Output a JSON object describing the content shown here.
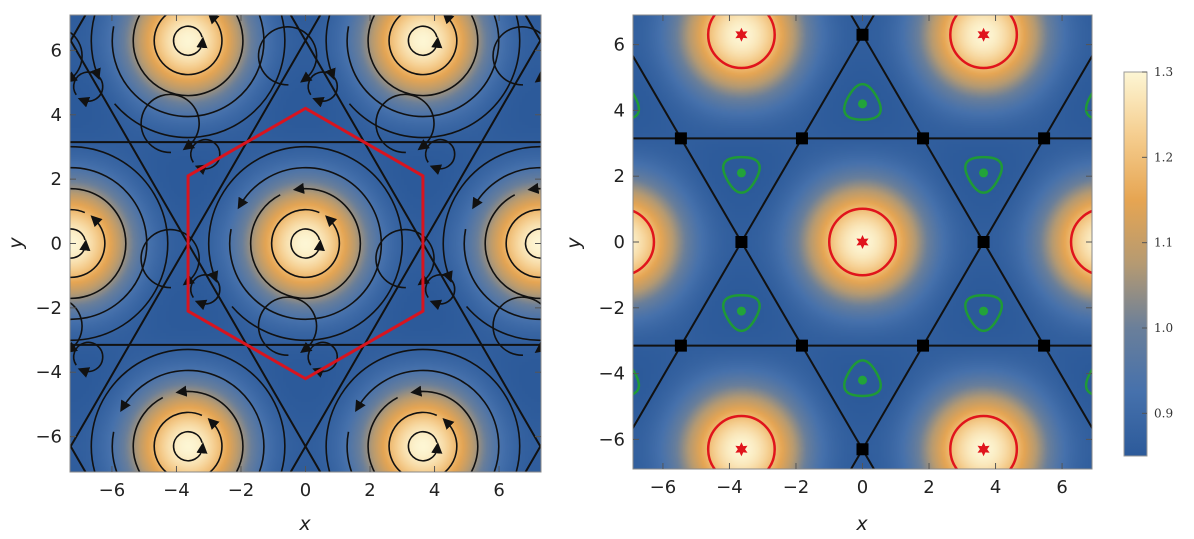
{
  "chart_data": [
    {
      "type": "heatmap",
      "panel": "left",
      "overlay": "streamlines",
      "xlabel": "x",
      "ylabel": "y",
      "xlim": [
        -7.3,
        7.3
      ],
      "ylim": [
        -7.1,
        7.1
      ],
      "x_ticks": [
        -6,
        -4,
        -2,
        0,
        2,
        4,
        6
      ],
      "y_ticks": [
        -6,
        -4,
        -2,
        0,
        2,
        4,
        6
      ],
      "x_tick_labels": [
        "−6",
        "−4",
        "−2",
        "0",
        "2",
        "4",
        "6"
      ],
      "y_tick_labels": [
        "−6",
        "−4",
        "−2",
        "0",
        "2",
        "4",
        "6"
      ],
      "maxima": [
        [
          0,
          0
        ],
        [
          -3.64,
          6.3
        ],
        [
          3.64,
          6.3
        ],
        [
          -7.27,
          0
        ],
        [
          7.27,
          0
        ],
        [
          -3.64,
          -6.3
        ],
        [
          3.64,
          -6.3
        ]
      ],
      "hexagon_vertices": [
        [
          0,
          4.2
        ],
        [
          3.64,
          2.1
        ],
        [
          3.64,
          -2.1
        ],
        [
          0,
          -4.2
        ],
        [
          -3.64,
          -2.1
        ],
        [
          -3.64,
          2.1
        ]
      ],
      "separatrix_y": [
        3.15,
        -3.15
      ],
      "colors": {
        "hexagon": "#d8141f",
        "streamline": "#111111"
      }
    },
    {
      "type": "heatmap",
      "panel": "right",
      "overlay": "contours and critical points",
      "xlabel": "x",
      "ylabel": "y",
      "xlim": [
        -6.9,
        6.9
      ],
      "ylim": [
        -6.9,
        6.9
      ],
      "x_ticks": [
        -6,
        -4,
        -2,
        0,
        2,
        4,
        6
      ],
      "y_ticks": [
        -6,
        -4,
        -2,
        0,
        2,
        4,
        6
      ],
      "x_tick_labels": [
        "−6",
        "−4",
        "−2",
        "0",
        "2",
        "4",
        "6"
      ],
      "y_tick_labels": [
        "−6",
        "−4",
        "−2",
        "0",
        "2",
        "4",
        "6"
      ],
      "maxima_stars": [
        [
          0,
          0
        ],
        [
          -3.64,
          6.3
        ],
        [
          3.64,
          6.3
        ],
        [
          -3.64,
          -6.3
        ],
        [
          3.64,
          -6.3
        ]
      ],
      "edge_maxima": [
        [
          -7.27,
          0
        ],
        [
          7.27,
          0
        ]
      ],
      "minima_dots": [
        [
          0,
          4.2
        ],
        [
          -3.64,
          2.1
        ],
        [
          3.64,
          2.1
        ],
        [
          -3.64,
          -2.1
        ],
        [
          3.64,
          -2.1
        ],
        [
          0,
          -4.2
        ]
      ],
      "saddle_squares": [
        [
          0,
          6.3
        ],
        [
          0,
          -6.3
        ],
        [
          -3.64,
          0
        ],
        [
          3.64,
          0
        ],
        [
          -5.46,
          3.15
        ],
        [
          -1.82,
          3.15
        ],
        [
          1.82,
          3.15
        ],
        [
          5.46,
          3.15
        ],
        [
          -5.46,
          -3.15
        ],
        [
          -1.82,
          -3.15
        ],
        [
          1.82,
          -3.15
        ],
        [
          5.46,
          -3.15
        ]
      ],
      "separatrix_y": [
        3.15,
        -3.15
      ],
      "colors": {
        "max_contour": "#e0141c",
        "min_contour": "#1f9a36",
        "min_dot": "#22a33a",
        "star": "#e0141c",
        "saddle": "#000000"
      }
    }
  ],
  "colorbar": {
    "min": 0.85,
    "max": 1.3,
    "ticks": [
      0.9,
      1.0,
      1.1,
      1.2,
      1.3
    ],
    "tick_labels": [
      "0.9",
      "1.0",
      "1.1",
      "1.2",
      "1.3"
    ],
    "stops": [
      "#2c5a9a",
      "#4671ac",
      "#6a7f9a",
      "#b59a72",
      "#e6a552",
      "#f5cd8e",
      "#fdf6d4"
    ]
  }
}
